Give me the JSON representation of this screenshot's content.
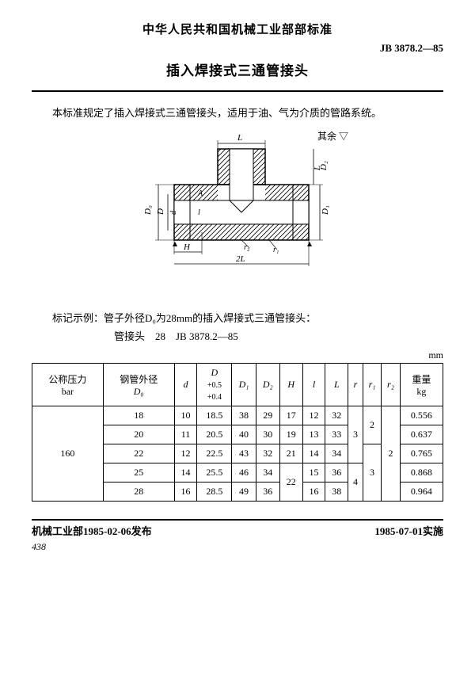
{
  "header": {
    "org_title": "中华人民共和国机械工业部部标准",
    "std_code": "JB 3878.2—85",
    "doc_title": "插入焊接式三通管接头"
  },
  "intro": "本标准规定了插入焊接式三通管接头，适用于油、气为介质的管路系统。",
  "figure": {
    "note": "其余 ▽",
    "labels": {
      "L": "L",
      "D0": "D₀",
      "D": "D",
      "d": "d",
      "A": "A",
      "l": "l",
      "H": "H",
      "twoL": "2L",
      "D1": "D₁",
      "r2": "r₂",
      "r1": "r₁",
      "D2": "D₂"
    },
    "stroke": "#000",
    "hatch_spacing": 5
  },
  "marking": {
    "line1": "标记示例：管子外径D₀为28mm的插入焊接式三通管接头：",
    "line2": "管接头　28　JB 3878.2—85"
  },
  "table": {
    "unit": "mm",
    "columns": [
      {
        "key": "bar",
        "label_top": "公称压力",
        "label_bot": "bar"
      },
      {
        "key": "d0",
        "label_top": "钢管外径",
        "label_bot": "D₀"
      },
      {
        "key": "d",
        "label": "d"
      },
      {
        "key": "Dtol",
        "label_top": "D",
        "tol_upper": "+0.5",
        "tol_lower": "+0.4"
      },
      {
        "key": "D1",
        "label": "D₁"
      },
      {
        "key": "D2",
        "label": "D₂"
      },
      {
        "key": "H",
        "label": "H"
      },
      {
        "key": "l",
        "label": "l"
      },
      {
        "key": "L",
        "label": "L"
      },
      {
        "key": "r",
        "label": "r"
      },
      {
        "key": "r1",
        "label": "r₁"
      },
      {
        "key": "r2",
        "label": "r₂"
      },
      {
        "key": "wt",
        "label_top": "重量",
        "label_bot": "kg"
      }
    ],
    "pressure_group": "160",
    "rows": [
      {
        "d0": "18",
        "d": "10",
        "Dtol": "18.5",
        "D1": "38",
        "D2": "29",
        "H": "17",
        "l": "12",
        "L": "32",
        "wt": "0.556"
      },
      {
        "d0": "20",
        "d": "11",
        "Dtol": "20.5",
        "D1": "40",
        "D2": "30",
        "H": "19",
        "l": "13",
        "L": "33",
        "wt": "0.637"
      },
      {
        "d0": "22",
        "d": "12",
        "Dtol": "22.5",
        "D1": "43",
        "D2": "32",
        "H": "21",
        "l": "14",
        "L": "34",
        "wt": "0.765"
      },
      {
        "d0": "25",
        "d": "14",
        "Dtol": "25.5",
        "D1": "46",
        "D2": "34",
        "H": "",
        "l": "15",
        "L": "36",
        "wt": "0.868"
      },
      {
        "d0": "28",
        "d": "16",
        "Dtol": "28.5",
        "D1": "49",
        "D2": "36",
        "H": "",
        "l": "16",
        "L": "38",
        "wt": "0.964"
      }
    ],
    "merged": {
      "H_group2": "22",
      "r_top3": "3",
      "r_bot2": "4",
      "r1_top2": "2",
      "r1_bot3": "3",
      "r2_all": "2"
    }
  },
  "footer": {
    "issue": "机械工业部1985-02-06发布",
    "effective": "1985-07-01实施",
    "page": "438"
  }
}
